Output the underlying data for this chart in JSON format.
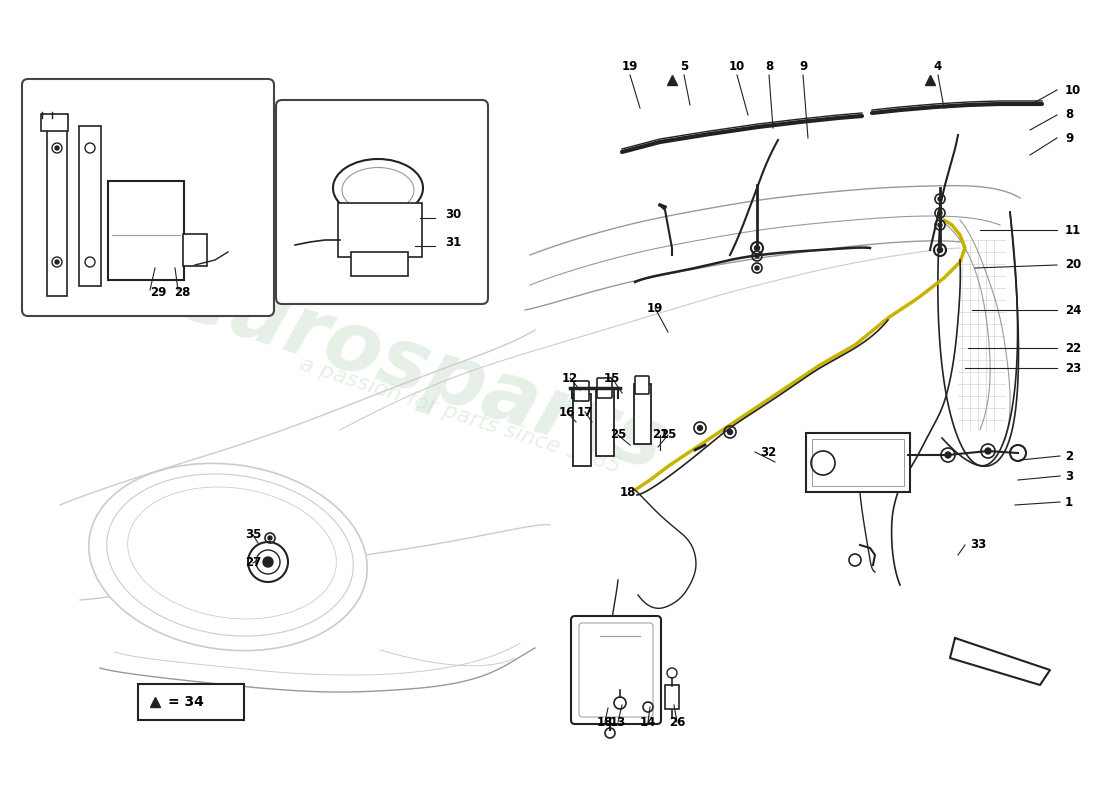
{
  "bg": "#ffffff",
  "wm1": "eurosparts",
  "wm2": "a passion for parts since 1985",
  "wm_color": "#c8dfc8",
  "line_color": "#222222",
  "gray": "#999999",
  "light_gray": "#cccccc",
  "yellow": "#c8b400"
}
